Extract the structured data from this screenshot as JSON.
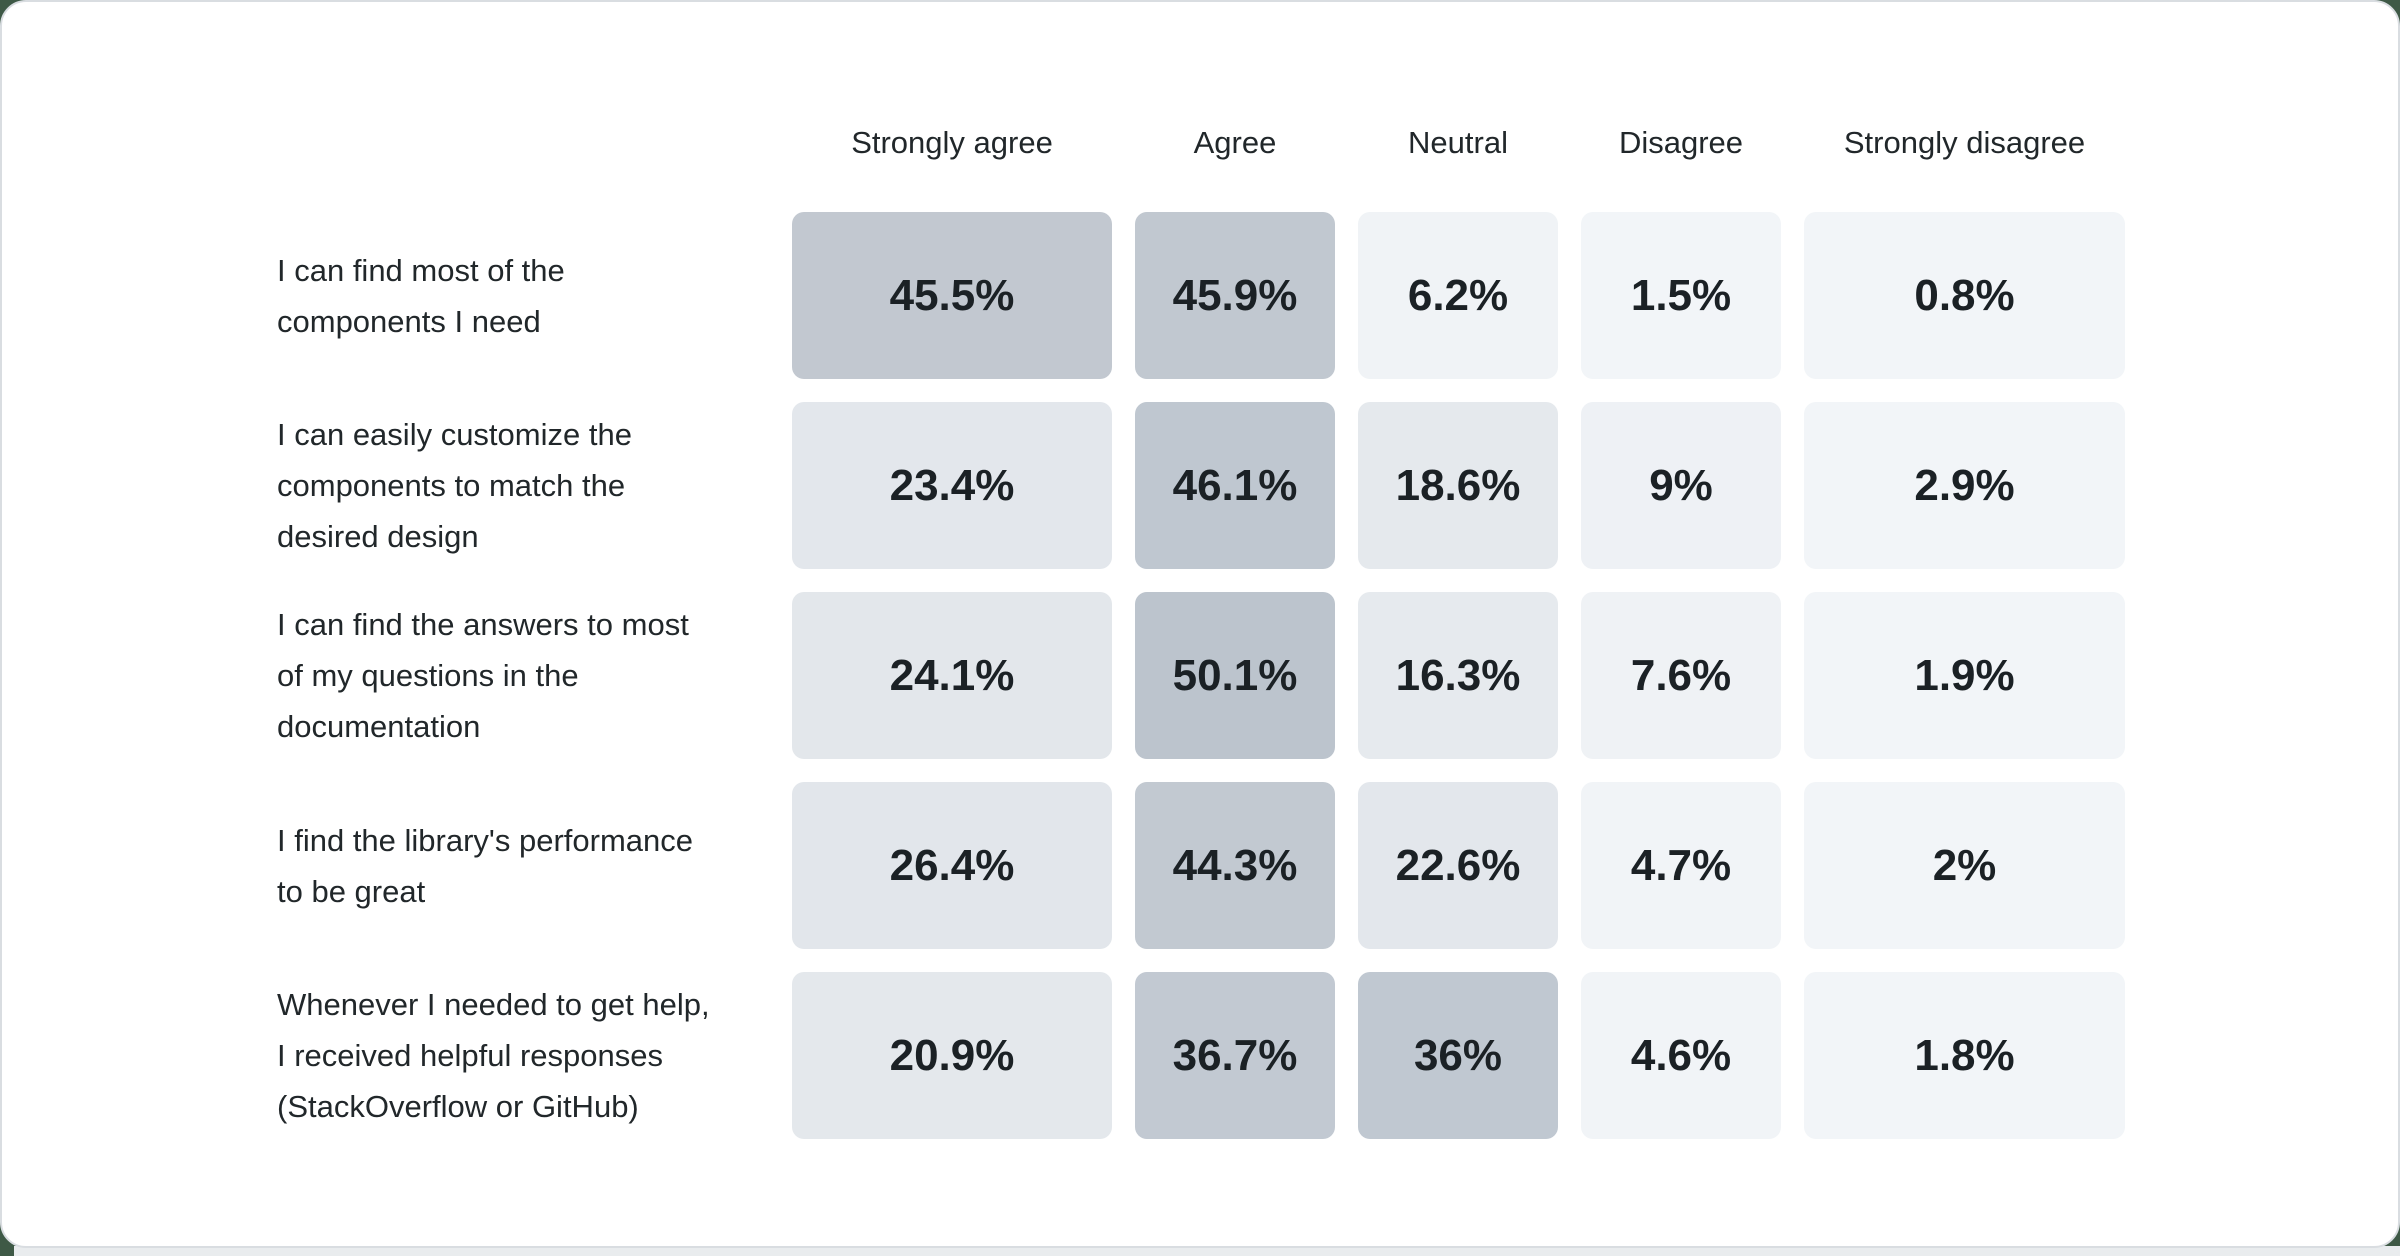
{
  "page": {
    "background_color": "#3e5946",
    "card_background": "#ffffff",
    "card_border_color": "#d9dde1",
    "text_color": "#21272a",
    "value_text_color": "#1b2125"
  },
  "chart_data": {
    "type": "heatmap",
    "title": "",
    "description": "Survey likert-scale results matrix: statements vs agreement levels, cell shade encodes percentage",
    "value_format": "percent",
    "legend_position": "none",
    "color_scale": {
      "low_value_color": "#f2f5f8",
      "high_value_color": "#bcc4cd"
    },
    "columns": [
      "Strongly agree",
      "Agree",
      "Neutral",
      "Disagree",
      "Strongly disagree"
    ],
    "rows": [
      {
        "label": "I can find most of the\ncomponents I need",
        "values": [
          45.5,
          45.9,
          6.2,
          1.5,
          0.8
        ],
        "display": [
          "45.5%",
          "45.9%",
          "6.2%",
          "1.5%",
          "0.8%"
        ],
        "colors": [
          "#c2c8d0",
          "#c1c8d0",
          "#f0f3f6",
          "#f2f5f8",
          "#f2f5f8"
        ]
      },
      {
        "label": "I can easily customize the\ncomponents to match the\ndesired design",
        "values": [
          23.4,
          46.1,
          18.6,
          9,
          2.9
        ],
        "display": [
          "23.4%",
          "46.1%",
          "18.6%",
          "9%",
          "2.9%"
        ],
        "colors": [
          "#e3e7ec",
          "#bfc7d0",
          "#e5e9ed",
          "#eef1f5",
          "#f2f5f8"
        ]
      },
      {
        "label": "I can find the answers to most\nof my questions in the\ndocumentation",
        "values": [
          24.1,
          50.1,
          16.3,
          7.6,
          1.9
        ],
        "display": [
          "24.1%",
          "50.1%",
          "16.3%",
          "7.6%",
          "1.9%"
        ],
        "colors": [
          "#e3e7eb",
          "#bcc4cd",
          "#e6eaee",
          "#eff2f5",
          "#f2f5f8"
        ]
      },
      {
        "label": "I find the library's performance\nto be great",
        "values": [
          26.4,
          44.3,
          22.6,
          4.7,
          2
        ],
        "display": [
          "26.4%",
          "44.3%",
          "22.6%",
          "4.7%",
          "2%"
        ],
        "colors": [
          "#e2e6eb",
          "#c2c9d1",
          "#e3e7ec",
          "#f1f4f7",
          "#f2f5f8"
        ]
      },
      {
        "label": "Whenever I needed to get help,\nI received helpful responses\n(StackOverflow or GitHub)",
        "values": [
          20.9,
          36.7,
          36,
          4.6,
          1.8
        ],
        "display": [
          "20.9%",
          "36.7%",
          "36%",
          "4.6%",
          "1.8%"
        ],
        "colors": [
          "#e4e8ec",
          "#c2c9d2",
          "#c0c8d1",
          "#f1f4f7",
          "#f2f5f8"
        ]
      }
    ]
  }
}
